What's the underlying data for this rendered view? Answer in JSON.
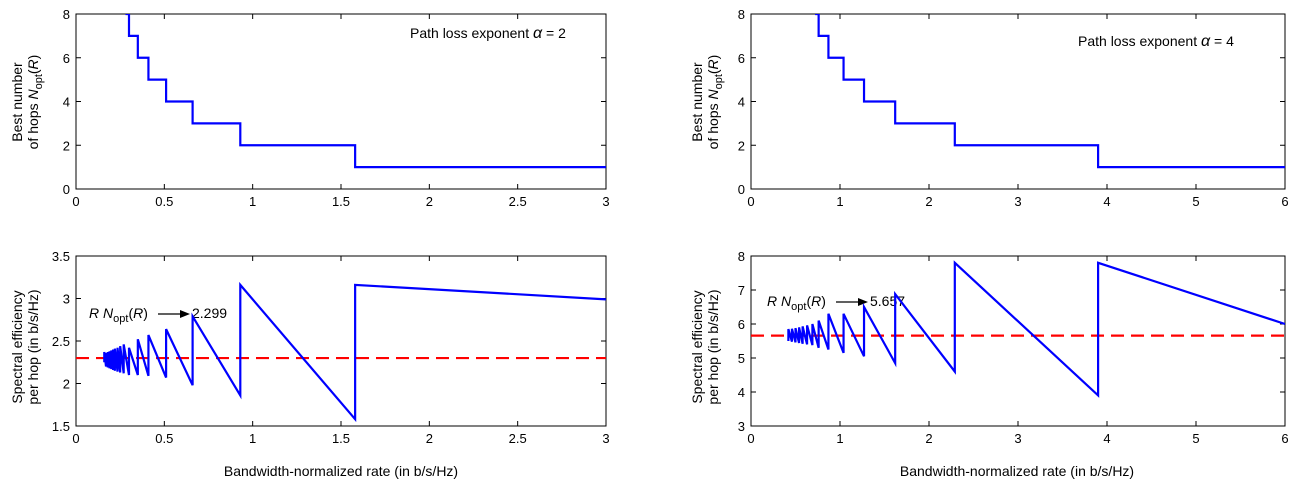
{
  "figure": {
    "xlabel": "Bandwidth-normalized rate (in b/s/Hz)",
    "hops_ylabel_line1": "Best number",
    "hops_ylabel_line2_prefix": "of hops ",
    "N": "N",
    "opt": "opt",
    "paren_open": "(",
    "R": "R",
    "paren_close": ")",
    "eff_ylabel_line1": "Spectral efficiency",
    "eff_ylabel_line2": "per hop (in b/s/Hz)",
    "alpha_prefix": "Path loss exponent ",
    "alpha_symbol": "α",
    "alpha_equals": " = ",
    "colors": {
      "step": "#0000ff",
      "line": "#0000ff",
      "reference": "#ff0000",
      "axis": "#000000"
    }
  },
  "chart_data": [
    {
      "type": "line",
      "panel": "top-left",
      "alpha": "2",
      "xlim": [
        0,
        3
      ],
      "ylim": [
        0,
        8
      ],
      "xticks": [
        "0",
        "0.5",
        "1",
        "1.5",
        "2",
        "2.5",
        "3"
      ],
      "yticks": [
        "0",
        "2",
        "4",
        "6",
        "8"
      ],
      "series": [
        {
          "x": [
            0.28,
            0.3,
            0.3,
            0.35,
            0.35,
            0.41,
            0.41,
            0.51,
            0.51,
            0.66,
            0.66,
            0.93,
            0.93,
            1.58,
            1.58,
            3.0
          ],
          "y": [
            8,
            8,
            7,
            7,
            6,
            6,
            5,
            5,
            4,
            4,
            3,
            3,
            2,
            2,
            1,
            1
          ]
        }
      ]
    },
    {
      "type": "line",
      "panel": "top-right",
      "alpha": "4",
      "xlim": [
        0,
        6
      ],
      "ylim": [
        0,
        8
      ],
      "xticks": [
        "0",
        "1",
        "2",
        "3",
        "4",
        "5",
        "6"
      ],
      "yticks": [
        "0",
        "2",
        "4",
        "6",
        "8"
      ],
      "series": [
        {
          "x": [
            0.72,
            0.76,
            0.76,
            0.87,
            0.87,
            1.04,
            1.04,
            1.27,
            1.27,
            1.62,
            1.62,
            2.29,
            2.29,
            3.9,
            3.9,
            6.0
          ],
          "y": [
            8,
            8,
            7,
            7,
            6,
            6,
            5,
            5,
            4,
            4,
            3,
            3,
            2,
            2,
            1,
            1
          ]
        }
      ]
    },
    {
      "type": "line",
      "panel": "bottom-left",
      "xlim": [
        0,
        3
      ],
      "ylim": [
        1.5,
        3.5
      ],
      "xticks": [
        "0",
        "0.5",
        "1",
        "1.5",
        "2",
        "2.5",
        "3"
      ],
      "yticks": [
        "1.5",
        "2",
        "2.5",
        "3",
        "3.5"
      ],
      "annotation_value": "2.299",
      "reference": {
        "y": 2.299
      },
      "series": [
        {
          "x": [
            0.16,
            0.16,
            0.17,
            0.17,
            0.18,
            0.18,
            0.19,
            0.19,
            0.2,
            0.2,
            0.21,
            0.21,
            0.22,
            0.22,
            0.235,
            0.235,
            0.25,
            0.25,
            0.27,
            0.27,
            0.3,
            0.3,
            0.35,
            0.35,
            0.41,
            0.41,
            0.51,
            0.51,
            0.66,
            0.66,
            0.93,
            0.93,
            1.58,
            1.58,
            3.0
          ],
          "y": [
            2.25,
            2.37,
            2.2,
            2.36,
            2.19,
            2.37,
            2.18,
            2.38,
            2.17,
            2.39,
            2.16,
            2.4,
            2.15,
            2.41,
            2.14,
            2.42,
            2.13,
            2.44,
            2.12,
            2.46,
            2.1,
            2.42,
            2.1,
            2.52,
            2.09,
            2.57,
            2.07,
            2.64,
            1.98,
            2.79,
            1.86,
            3.16,
            1.58,
            3.16,
            2.99
          ]
        }
      ]
    },
    {
      "type": "line",
      "panel": "bottom-right",
      "xlim": [
        0,
        6
      ],
      "ylim": [
        3,
        8
      ],
      "xticks": [
        "0",
        "1",
        "2",
        "3",
        "4",
        "5",
        "6"
      ],
      "yticks": [
        "3",
        "4",
        "5",
        "6",
        "7",
        "8"
      ],
      "annotation_value": "5.657",
      "reference": {
        "y": 5.657
      },
      "series": [
        {
          "x": [
            0.42,
            0.42,
            0.46,
            0.46,
            0.5,
            0.5,
            0.54,
            0.54,
            0.58,
            0.58,
            0.63,
            0.63,
            0.69,
            0.69,
            0.76,
            0.76,
            0.87,
            0.87,
            1.04,
            1.04,
            1.27,
            1.27,
            1.62,
            1.62,
            2.29,
            2.29,
            3.9,
            3.9,
            6.0
          ],
          "y": [
            5.5,
            5.85,
            5.48,
            5.86,
            5.46,
            5.88,
            5.44,
            5.9,
            5.42,
            5.93,
            5.4,
            5.96,
            5.38,
            6.0,
            5.3,
            6.1,
            5.25,
            6.3,
            5.15,
            6.3,
            5.05,
            6.5,
            4.85,
            6.88,
            4.6,
            7.8,
            3.9,
            7.8,
            6.0
          ]
        }
      ]
    }
  ]
}
